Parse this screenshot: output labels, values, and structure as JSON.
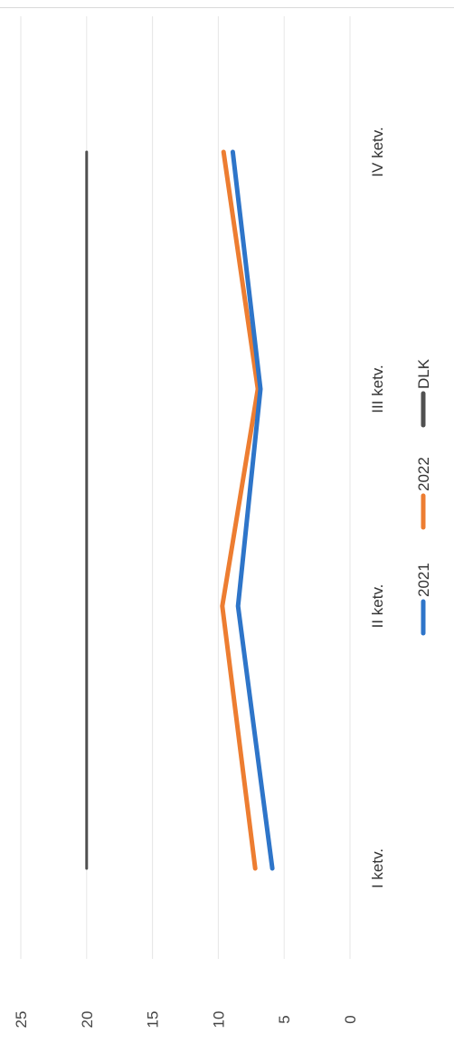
{
  "chart_data": {
    "type": "line",
    "orientation": "rotated-90-clockwise",
    "categories": [
      "I ketv.",
      "II ketv.",
      "III ketv.",
      "IV ketv."
    ],
    "y_ticks": [
      "0",
      "5",
      "10",
      "15",
      "20",
      "25"
    ],
    "ylim": [
      0,
      25
    ],
    "grid": true,
    "legend_position": "bottom",
    "series": [
      {
        "name": "2021",
        "values": [
          5.9,
          8.5,
          6.8,
          8.9
        ],
        "color": "#2e75c9"
      },
      {
        "name": "2022",
        "values": [
          7.2,
          9.7,
          7.0,
          9.6
        ],
        "color": "#ed7d31"
      },
      {
        "name": "DLK",
        "values": [
          20,
          20,
          20,
          20
        ],
        "color": "#505050"
      }
    ]
  }
}
